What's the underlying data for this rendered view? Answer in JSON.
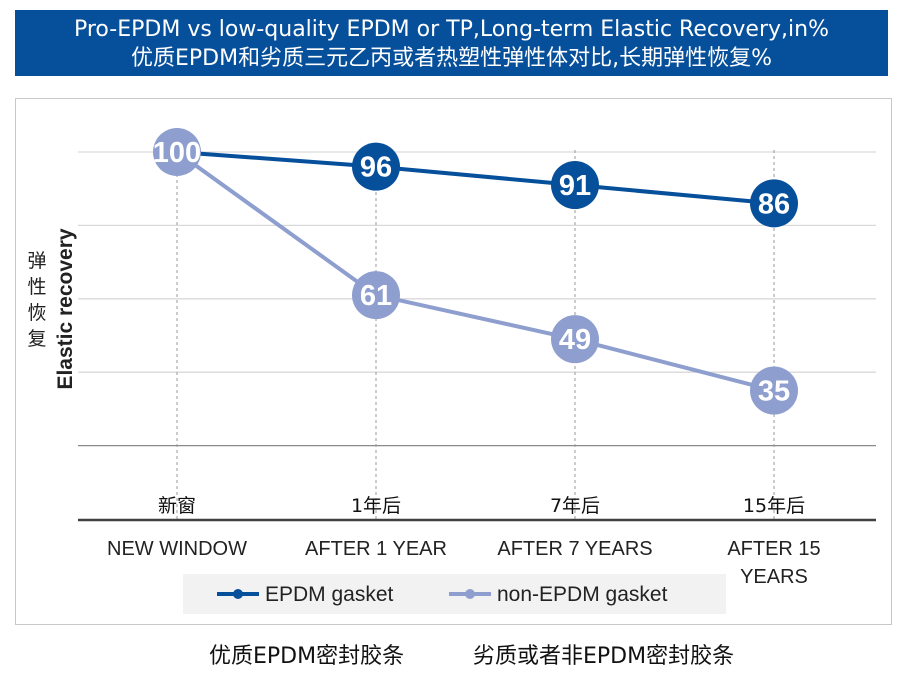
{
  "title": {
    "line1": "Pro-EPDM vs low-quality EPDM or TP,Long-term Elastic Recovery,in%",
    "line2": "优质EPDM和劣质三元乙丙或者热塑性弹性体对比,长期弹性恢复%"
  },
  "colors": {
    "title_bg": "#064f9b",
    "series_epdm": "#064f9b",
    "series_non_epdm": "#8e9fcf",
    "gridline": "#d9d9d9",
    "axis": "#404040"
  },
  "chart_data": {
    "type": "line",
    "categories": [
      "NEW WINDOW",
      "AFTER 1 YEAR",
      "AFTER 7 YEARS",
      "AFTER 15 YEARS"
    ],
    "categories_cn": [
      "新窗",
      "1年后",
      "7年后",
      "15年后"
    ],
    "ylabel": "Elastic recovery",
    "ylabel_cn": "弹性恢复",
    "ylim": [
      0,
      100
    ],
    "grid": true,
    "legend_position": "bottom",
    "series": [
      {
        "name": "EPDM gasket",
        "values": [
          100,
          96,
          91,
          86
        ],
        "color": "#064f9b"
      },
      {
        "name": "non-EPDM gasket",
        "values": [
          100,
          61,
          49,
          35
        ],
        "color": "#8e9fcf"
      }
    ]
  },
  "caption": {
    "left": "优质EPDM密封胶条",
    "right": "劣质或者非EPDM密封胶条"
  }
}
